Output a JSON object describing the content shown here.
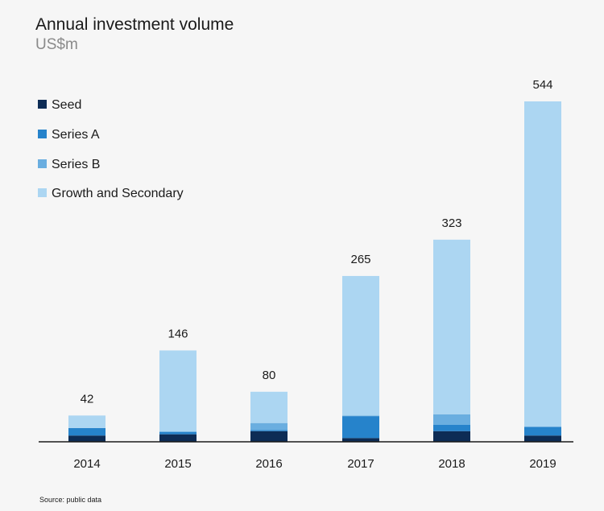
{
  "chart_data": {
    "type": "bar",
    "stacked": true,
    "title": "Annual investment volume",
    "subtitle": "US$m",
    "categories": [
      "2014",
      "2015",
      "2016",
      "2017",
      "2018",
      "2019"
    ],
    "series": [
      {
        "name": "Seed",
        "color": "#0d2c55",
        "values": [
          10,
          12,
          17,
          6,
          17,
          10
        ]
      },
      {
        "name": "Series A",
        "color": "#2683cb",
        "values": [
          12,
          4,
          2,
          35,
          10,
          14
        ]
      },
      {
        "name": "Series B",
        "color": "#6aaee0",
        "values": [
          0,
          0,
          11,
          1,
          17,
          0
        ]
      },
      {
        "name": "Growth and Secondary",
        "color": "#acd6f2",
        "values": [
          20,
          130,
          50,
          223,
          279,
          520
        ]
      }
    ],
    "totals": [
      42,
      146,
      80,
      265,
      323,
      544
    ],
    "legend_position": "top-left",
    "ylim": [
      0,
      560
    ],
    "grid": false,
    "source": "Source: public data"
  }
}
